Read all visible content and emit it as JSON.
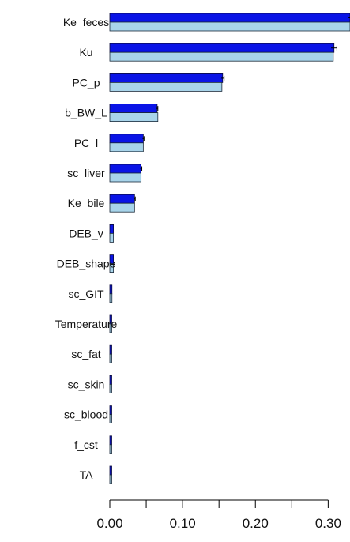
{
  "chart_data": {
    "type": "bar",
    "orientation": "horizontal",
    "title": "",
    "xlabel": "",
    "ylabel": "",
    "xlim": [
      0,
      0.33
    ],
    "x_ticks": [
      "0.00",
      "0.10",
      "0.20",
      "0.30"
    ],
    "x_tick_values": [
      0.0,
      0.1,
      0.2,
      0.3
    ],
    "grid": false,
    "legend": "none",
    "categories": [
      "Ke_feces",
      "Ku",
      "PC_p",
      "b_BW_L",
      "PC_l",
      "sc_liver",
      "Ke_bile",
      "DEB_v",
      "DEB_shape",
      "sc_GIT",
      "Temperature",
      "sc_fat",
      "sc_skin",
      "sc_blood",
      "f_cst",
      "TA"
    ],
    "series": [
      {
        "color": "#0a14e6",
        "values": [
          0.33,
          0.308,
          0.155,
          0.065,
          0.046,
          0.043,
          0.034,
          0.005,
          0.005,
          0.003,
          0.002,
          0.002,
          0.002,
          0.001,
          0.001,
          0.001
        ],
        "error": [
          0.002,
          0.004,
          0.002,
          0.001,
          0.001,
          0.001,
          0.001,
          0.0005,
          0.0005,
          0.0003,
          0.0002,
          0.0002,
          0.0002,
          0.0001,
          0.0001,
          0.0001
        ]
      },
      {
        "color": "#a8d4ea",
        "values": [
          0.33,
          0.307,
          0.154,
          0.066,
          0.046,
          0.043,
          0.034,
          0.005,
          0.005,
          0.003,
          0.002,
          0.002,
          0.002,
          0.001,
          0.001,
          0.001
        ]
      }
    ]
  }
}
